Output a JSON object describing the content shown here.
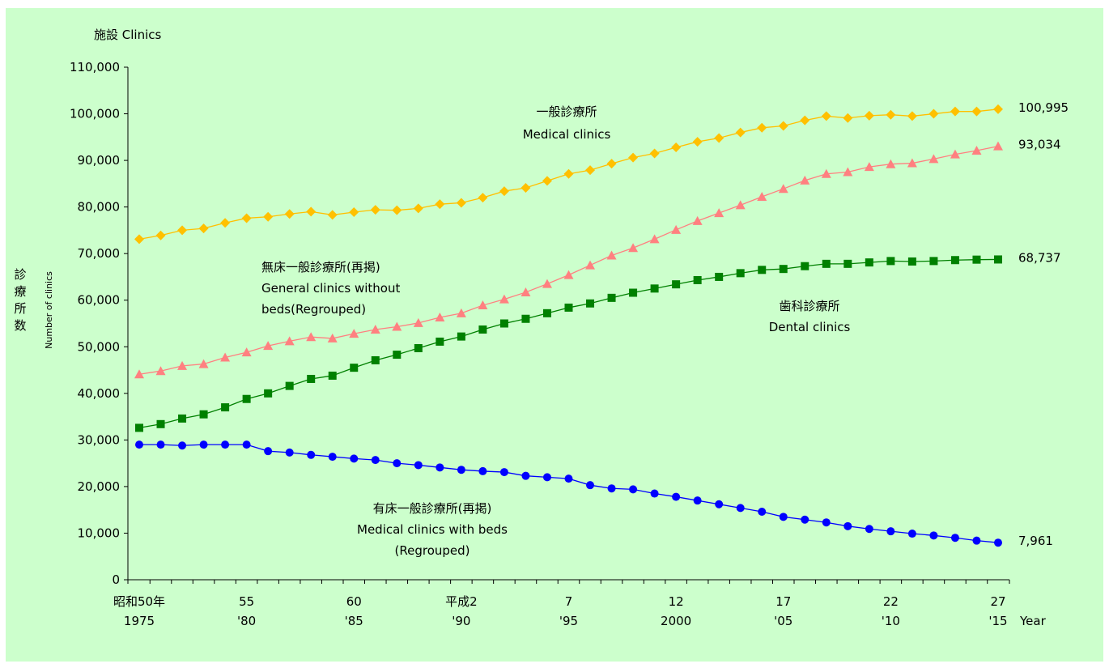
{
  "chart_data": {
    "type": "line",
    "title": "",
    "y_unit_label": "施設  Clinics",
    "ylabel_jp": "診療所数",
    "ylabel_en": "Number of clinics",
    "xlabel": "Year",
    "ylim": [
      0,
      110000
    ],
    "y_ticks": [
      "0",
      "10,000",
      "20,000",
      "30,000",
      "40,000",
      "50,000",
      "60,000",
      "70,000",
      "80,000",
      "90,000",
      "100,000",
      "110,000"
    ],
    "x": [
      1975,
      1976,
      1977,
      1978,
      1979,
      1980,
      1981,
      1982,
      1983,
      1984,
      1985,
      1986,
      1987,
      1988,
      1989,
      1990,
      1991,
      1992,
      1993,
      1994,
      1995,
      1996,
      1997,
      1998,
      1999,
      2000,
      2001,
      2002,
      2003,
      2004,
      2005,
      2006,
      2007,
      2008,
      2009,
      2010,
      2011,
      2012,
      2013,
      2014,
      2015
    ],
    "x_tick_labels": [
      {
        "year": 1975,
        "era": "昭和50年",
        "western": "1975"
      },
      {
        "year": 1980,
        "era": "55",
        "western": "'80"
      },
      {
        "year": 1985,
        "era": "60",
        "western": "'85"
      },
      {
        "year": 1990,
        "era": "平成2",
        "western": "'90"
      },
      {
        "year": 1995,
        "era": "7",
        "western": "'95"
      },
      {
        "year": 2000,
        "era": "12",
        "western": "2000"
      },
      {
        "year": 2005,
        "era": "17",
        "western": "'05"
      },
      {
        "year": 2010,
        "era": "22",
        "western": "'10"
      },
      {
        "year": 2015,
        "era": "27",
        "western": "'15"
      }
    ],
    "series": [
      {
        "name_jp": "一般診療所",
        "name_en": "Medical clinics",
        "color": "#ffc000",
        "line_color": "#ffc000",
        "marker": "diamond",
        "end_label": "100,995",
        "values": [
          73100,
          73900,
          75000,
          75400,
          76600,
          77600,
          77900,
          78500,
          79000,
          78300,
          78900,
          79400,
          79300,
          79700,
          80600,
          80900,
          82000,
          83400,
          84100,
          85600,
          87100,
          87900,
          89300,
          90600,
          91500,
          92800,
          94000,
          94800,
          96000,
          97000,
          97400,
          98600,
          99500,
          99100,
          99600,
          99800,
          99500,
          100000,
          100500,
          100500,
          100995
        ]
      },
      {
        "name_jp": "無床一般診療所(再掲)",
        "name_en_line1": "General clinics without",
        "name_en_line2": "beds(Regrouped)",
        "color": "#ff8080",
        "line_color": "#ff8080",
        "marker": "triangle",
        "end_label": "93,034",
        "values": [
          44100,
          44800,
          45900,
          46300,
          47700,
          48800,
          50200,
          51200,
          52100,
          51800,
          52800,
          53700,
          54300,
          55100,
          56300,
          57200,
          58900,
          60200,
          61700,
          63500,
          65400,
          67500,
          69600,
          71200,
          73100,
          75100,
          77000,
          78700,
          80400,
          82200,
          83900,
          85700,
          87100,
          87500,
          88600,
          89200,
          89400,
          90300,
          91300,
          92100,
          93034
        ]
      },
      {
        "name_jp": "歯科診療所",
        "name_en": "Dental clinics",
        "color": "#008000",
        "line_color": "#008000",
        "marker": "square",
        "end_label": "68,737",
        "values": [
          32600,
          33400,
          34600,
          35500,
          37000,
          38800,
          40000,
          41600,
          43100,
          43800,
          45500,
          47100,
          48300,
          49700,
          51100,
          52200,
          53700,
          55000,
          56000,
          57200,
          58400,
          59300,
          60500,
          61600,
          62500,
          63400,
          64300,
          65000,
          65800,
          66500,
          66700,
          67300,
          67800,
          67800,
          68100,
          68400,
          68300,
          68400,
          68600,
          68700,
          68737
        ]
      },
      {
        "name_jp": "有床一般診療所(再掲)",
        "name_en_line1": "Medical clinics with beds",
        "name_en_line2": "(Regrouped)",
        "color": "#0000ff",
        "line_color": "#0000ff",
        "marker": "circle",
        "end_label": "7,961",
        "values": [
          29000,
          29000,
          28800,
          29000,
          29000,
          29000,
          27600,
          27300,
          26800,
          26400,
          26000,
          25700,
          25000,
          24600,
          24100,
          23600,
          23300,
          23100,
          22300,
          22000,
          21700,
          20300,
          19600,
          19400,
          18500,
          17800,
          17000,
          16200,
          15400,
          14600,
          13500,
          12900,
          12300,
          11500,
          10900,
          10400,
          9900,
          9500,
          9000,
          8400,
          7961
        ]
      }
    ]
  }
}
